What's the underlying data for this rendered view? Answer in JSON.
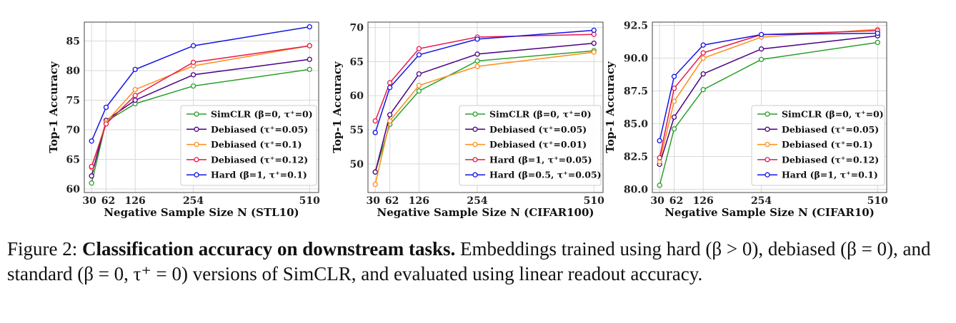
{
  "chart_data": [
    {
      "type": "line",
      "xlabel": "Negative Sample Size N (STL10)",
      "ylabel": "Top-1 Accuracy",
      "x": [
        30,
        62,
        126,
        254,
        510
      ],
      "xticks": [
        30,
        62,
        126,
        254,
        510
      ],
      "xtick_labels": [
        "30",
        "62",
        "126",
        "254",
        "510"
      ],
      "xlim": [
        14,
        530
      ],
      "ylim": [
        59.4,
        88.2
      ],
      "yticks": [
        60,
        65,
        70,
        75,
        80,
        85
      ],
      "grid": true,
      "legend_position": "lower-right",
      "series": [
        {
          "name": "SimCLR (β=0, τ⁺=0)",
          "color": "#2ca02c",
          "values": [
            61.0,
            71.4,
            74.4,
            77.4,
            80.2
          ]
        },
        {
          "name": "Debiased (τ⁺=0.05)",
          "color": "#4b0082",
          "values": [
            62.2,
            71.6,
            75.0,
            79.3,
            81.9
          ]
        },
        {
          "name": "Debiased (τ⁺=0.1)",
          "color": "#ff8c1a",
          "values": [
            63.6,
            71.3,
            76.8,
            80.8,
            84.2
          ]
        },
        {
          "name": "Debiased (τ⁺=0.12)",
          "color": "#e8184b",
          "values": [
            63.8,
            71.0,
            75.8,
            81.4,
            84.2
          ]
        },
        {
          "name": "Hard (β=1, τ⁺=0.1)",
          "color": "#1414e6",
          "values": [
            68.1,
            73.8,
            80.2,
            84.2,
            87.4
          ]
        }
      ]
    },
    {
      "type": "line",
      "xlabel": "Negative Sample Size N (CIFAR100)",
      "ylabel": "Top-1 Accuracy",
      "x": [
        30,
        62,
        126,
        254,
        510
      ],
      "xticks": [
        30,
        62,
        126,
        254,
        510
      ],
      "xtick_labels": [
        "30",
        "62",
        "126",
        "254",
        "510"
      ],
      "xlim": [
        14,
        530
      ],
      "ylim": [
        45.8,
        70.8
      ],
      "yticks": [
        50,
        55,
        60,
        65,
        70
      ],
      "grid": true,
      "legend_position": "lower-right",
      "series": [
        {
          "name": "SimCLR (β=0, τ⁺=0)",
          "color": "#2ca02c",
          "values": [
            48.8,
            55.8,
            60.7,
            65.1,
            66.6
          ]
        },
        {
          "name": "Debiased (τ⁺=0.05)",
          "color": "#4b0082",
          "values": [
            48.8,
            57.2,
            63.2,
            66.1,
            67.7
          ]
        },
        {
          "name": "Debiased (τ⁺=0.01)",
          "color": "#ff8c1a",
          "values": [
            47.0,
            56.3,
            61.5,
            64.3,
            66.4
          ]
        },
        {
          "name": "Hard (β=1, τ⁺=0.05)",
          "color": "#e8184b",
          "values": [
            56.3,
            61.9,
            66.9,
            68.6,
            69.0
          ]
        },
        {
          "name": "Hard (β=0.5, τ⁺=0.05)",
          "color": "#1414e6",
          "values": [
            54.6,
            61.2,
            66.0,
            68.3,
            69.6
          ]
        }
      ]
    },
    {
      "type": "line",
      "xlabel": "Negative Sample Size N (CIFAR10)",
      "ylabel": "Top-1 Accuracy",
      "x": [
        30,
        62,
        126,
        254,
        510
      ],
      "xticks": [
        30,
        62,
        126,
        254,
        510
      ],
      "xtick_labels": [
        "30",
        "62",
        "126",
        "254",
        "510"
      ],
      "xlim": [
        14,
        530
      ],
      "ylim": [
        79.75,
        92.75
      ],
      "yticks": [
        80.0,
        82.5,
        85.0,
        87.5,
        90.0,
        92.5
      ],
      "ytick_labels": [
        "80.0",
        "82.5",
        "85.0",
        "87.5",
        "90.0",
        "92.5"
      ],
      "grid": true,
      "legend_position": "lower-right",
      "series": [
        {
          "name": "SimCLR (β=0, τ⁺=0)",
          "color": "#2ca02c",
          "values": [
            80.3,
            84.6,
            87.6,
            89.9,
            91.2
          ]
        },
        {
          "name": "Debiased (τ⁺=0.05)",
          "color": "#4b0082",
          "values": [
            81.9,
            85.5,
            88.8,
            90.7,
            91.7
          ]
        },
        {
          "name": "Debiased (τ⁺=0.1)",
          "color": "#ff8c1a",
          "values": [
            82.1,
            86.7,
            90.0,
            91.6,
            92.2
          ]
        },
        {
          "name": "Debiased (τ⁺=0.12)",
          "color": "#e8184b",
          "values": [
            82.4,
            87.7,
            90.4,
            91.8,
            92.1
          ]
        },
        {
          "name": "Hard (β=1, τ⁺=0.1)",
          "color": "#1414e6",
          "values": [
            83.7,
            88.6,
            91.0,
            91.8,
            91.9
          ]
        }
      ]
    }
  ],
  "caption": {
    "prefix": "Figure 2: ",
    "bold": "Classification accuracy on downstream tasks.",
    "rest": " Embeddings trained using hard (β > 0), debiased (β = 0), and standard (β = 0, τ⁺ = 0) versions of SimCLR, and evaluated using linear readout accuracy."
  }
}
